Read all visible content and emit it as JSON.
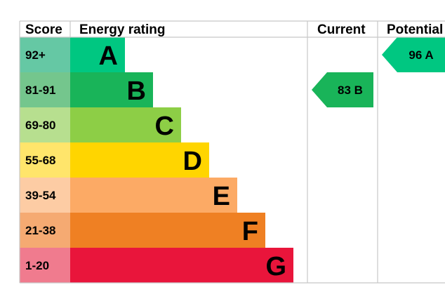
{
  "headers": {
    "score": "Score",
    "rating": "Energy rating",
    "current": "Current",
    "potential": "Potential"
  },
  "chart_data": {
    "type": "bar",
    "bands": [
      {
        "letter": "A",
        "range": "92+",
        "color": "#00c781",
        "score_bg": "#65c8a4"
      },
      {
        "letter": "B",
        "range": "81-91",
        "color": "#19b459",
        "score_bg": "#74c68d"
      },
      {
        "letter": "C",
        "range": "69-80",
        "color": "#8dce46",
        "score_bg": "#b7df8f"
      },
      {
        "letter": "D",
        "range": "55-68",
        "color": "#ffd500",
        "score_bg": "#ffe56b"
      },
      {
        "letter": "E",
        "range": "39-54",
        "color": "#fcaa65",
        "score_bg": "#fdcca4"
      },
      {
        "letter": "F",
        "range": "21-38",
        "color": "#ef8023",
        "score_bg": "#f5aa72"
      },
      {
        "letter": "G",
        "range": "1-20",
        "color": "#e9153b",
        "score_bg": "#f07b8e"
      }
    ],
    "current": {
      "value": 83,
      "band": "B",
      "label": "83  B",
      "color": "#19b459"
    },
    "potential": {
      "value": 96,
      "band": "A",
      "label": "96  A",
      "color": "#00c781"
    }
  }
}
